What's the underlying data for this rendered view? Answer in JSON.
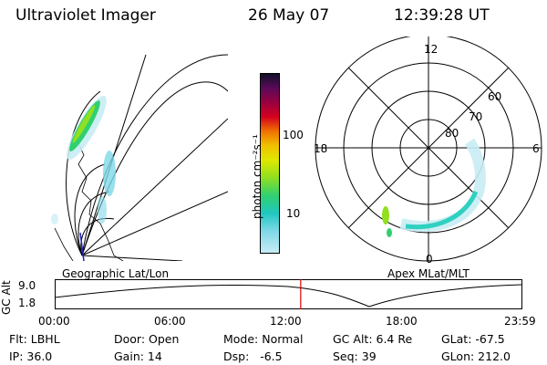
{
  "header": {
    "instrument": "Ultraviolet Imager",
    "date": "26 May 07",
    "time": "12:39:28 UT"
  },
  "left_panel": {
    "caption": "Geographic Lat/Lon"
  },
  "colorbar": {
    "unit_label": "photon cm⁻²s⁻¹",
    "ticks": [
      "100",
      "10"
    ],
    "colors": [
      "#101028",
      "#5a0a5a",
      "#9a0040",
      "#d40020",
      "#f07000",
      "#f0c000",
      "#e0e800",
      "#90e020",
      "#30d070",
      "#20c8c0",
      "#80d8e8",
      "#c8ecf4"
    ]
  },
  "polar_panel": {
    "caption": "Apex MLat/MLT",
    "mlt_labels": {
      "top": "12",
      "left": "18",
      "right": "6",
      "bottom": "0"
    },
    "lat_labels": [
      "60",
      "70",
      "80"
    ]
  },
  "altitude_plot": {
    "y_label": "GC Alt",
    "y_ticks": [
      "9.0",
      "1.8"
    ],
    "x_ticks": [
      "00:00",
      "06:00",
      "12:00",
      "18:00",
      "23:59"
    ],
    "current_time_fraction": 0.527
  },
  "info": {
    "filter": "Flt: LBHL",
    "door": "Door: Open",
    "mode": "Mode: Normal",
    "gc_alt": "GC Alt: 6.4 Re",
    "glat": "GLat: -67.5",
    "ip": "IP: 36.0",
    "gain": "Gain: 14",
    "dsp": "Dsp:   -6.5",
    "seq": "Seq: 39",
    "glon": "GLon: 212.0"
  }
}
